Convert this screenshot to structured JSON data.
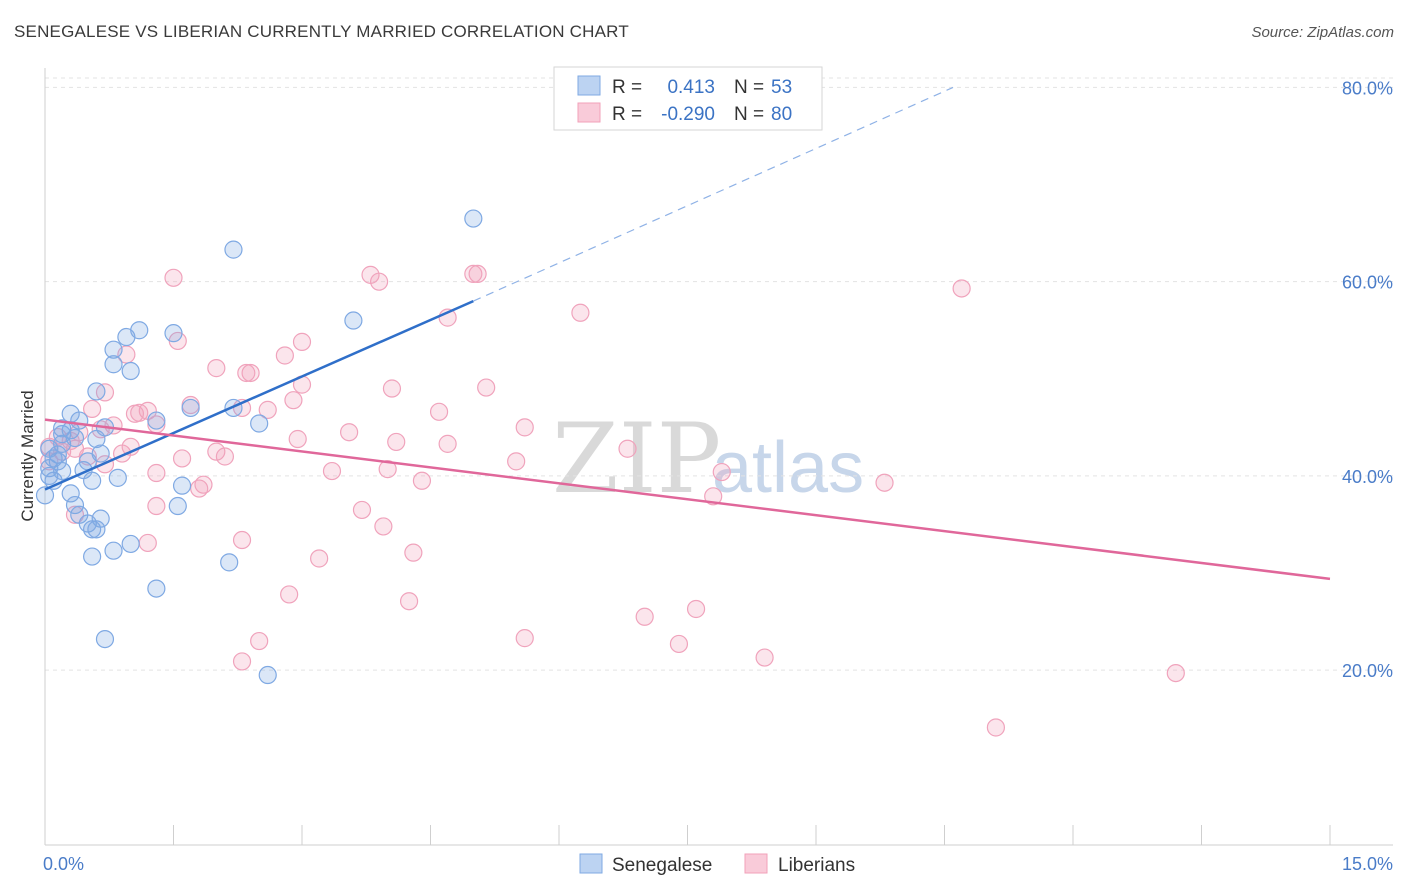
{
  "title": "SENEGALESE VS LIBERIAN CURRENTLY MARRIED CORRELATION CHART",
  "source": "Source: ZipAtlas.com",
  "watermark": {
    "zip": "ZIP",
    "atlas": "atlas"
  },
  "legend": {
    "r_label": "R =",
    "n_label": "N =",
    "entries": [
      {
        "r": "0.413",
        "n": "53",
        "color": "#7fa9e3"
      },
      {
        "r": "-0.290",
        "n": "80",
        "color": "#f2a0b9"
      }
    ]
  },
  "bottom_legend": [
    "Senegalese",
    "Liberians"
  ],
  "chart_data": {
    "type": "scatter",
    "xlabel": "",
    "ylabel": "Currently Married",
    "xlim": [
      0,
      15
    ],
    "ylim": [
      2,
      82
    ],
    "x_tick_labels": [
      "0.0%",
      "15.0%"
    ],
    "y_ticks": [
      20,
      40,
      60,
      80
    ],
    "y_tick_labels": [
      "20.0%",
      "40.0%",
      "60.0%",
      "80.0%"
    ],
    "grid": true,
    "colors": {
      "senegalese": "#7fa9e3",
      "liberians": "#f2a0b9",
      "senegalese_line": "#2f6fc9",
      "liberians_line": "#e0679a"
    },
    "series": [
      {
        "name": "Senegalese",
        "trend": {
          "x": [
            0,
            5
          ],
          "y": [
            38.6,
            58.0
          ],
          "dashed_extension": {
            "x": [
              5,
              10.6
            ],
            "y": [
              58.0,
              80.0
            ]
          }
        },
        "points": [
          [
            5.0,
            66.5
          ],
          [
            2.2,
            63.3
          ],
          [
            3.6,
            56.0
          ],
          [
            1.1,
            55.0
          ],
          [
            1.5,
            54.7
          ],
          [
            0.95,
            54.3
          ],
          [
            0.8,
            53.0
          ],
          [
            0.8,
            51.5
          ],
          [
            1.0,
            50.8
          ],
          [
            0.6,
            48.7
          ],
          [
            1.7,
            47.0
          ],
          [
            2.2,
            47.0
          ],
          [
            0.3,
            46.4
          ],
          [
            1.3,
            45.7
          ],
          [
            0.4,
            45.7
          ],
          [
            2.5,
            45.4
          ],
          [
            0.7,
            45.0
          ],
          [
            0.3,
            44.7
          ],
          [
            0.2,
            44.3
          ],
          [
            0.6,
            43.8
          ],
          [
            0.2,
            43.3
          ],
          [
            0.05,
            42.8
          ],
          [
            0.15,
            42.2
          ],
          [
            0.65,
            42.3
          ],
          [
            0.1,
            41.8
          ],
          [
            0.05,
            40.8
          ],
          [
            0.2,
            40.5
          ],
          [
            0.5,
            41.5
          ],
          [
            0.45,
            40.6
          ],
          [
            0.1,
            39.5
          ],
          [
            0.55,
            39.5
          ],
          [
            0.85,
            39.8
          ],
          [
            1.6,
            39.0
          ],
          [
            0.3,
            38.2
          ],
          [
            0.0,
            38.0
          ],
          [
            0.35,
            37.0
          ],
          [
            1.55,
            36.9
          ],
          [
            0.4,
            36.0
          ],
          [
            0.65,
            35.6
          ],
          [
            0.5,
            35.1
          ],
          [
            0.55,
            34.5
          ],
          [
            0.6,
            34.5
          ],
          [
            1.0,
            33.0
          ],
          [
            0.8,
            32.3
          ],
          [
            0.55,
            31.7
          ],
          [
            2.15,
            31.1
          ],
          [
            1.3,
            28.4
          ],
          [
            0.7,
            23.2
          ],
          [
            2.6,
            19.5
          ],
          [
            0.2,
            44.9
          ],
          [
            0.05,
            40.0
          ],
          [
            0.35,
            43.9
          ],
          [
            0.15,
            41.5
          ]
        ]
      },
      {
        "name": "Liberians",
        "trend": {
          "x": [
            0,
            15
          ],
          "y": [
            45.8,
            29.4
          ]
        },
        "points": [
          [
            5.05,
            60.8
          ],
          [
            3.8,
            60.7
          ],
          [
            5.0,
            60.8
          ],
          [
            1.5,
            60.4
          ],
          [
            3.9,
            60.0
          ],
          [
            10.7,
            59.3
          ],
          [
            6.25,
            56.8
          ],
          [
            4.7,
            56.3
          ],
          [
            3.0,
            53.8
          ],
          [
            1.55,
            53.9
          ],
          [
            0.95,
            52.5
          ],
          [
            2.8,
            52.4
          ],
          [
            2.0,
            51.1
          ],
          [
            2.4,
            50.6
          ],
          [
            2.35,
            50.6
          ],
          [
            3.0,
            49.4
          ],
          [
            4.05,
            49.0
          ],
          [
            5.15,
            49.1
          ],
          [
            0.7,
            48.6
          ],
          [
            1.7,
            47.3
          ],
          [
            2.3,
            47.0
          ],
          [
            2.6,
            46.8
          ],
          [
            4.6,
            46.6
          ],
          [
            1.2,
            46.7
          ],
          [
            0.55,
            46.9
          ],
          [
            1.05,
            46.4
          ],
          [
            1.3,
            45.3
          ],
          [
            5.6,
            45.0
          ],
          [
            0.4,
            44.5
          ],
          [
            0.65,
            44.8
          ],
          [
            2.95,
            43.8
          ],
          [
            0.3,
            43.6
          ],
          [
            4.7,
            43.3
          ],
          [
            1.0,
            43.0
          ],
          [
            0.35,
            42.8
          ],
          [
            0.2,
            42.5
          ],
          [
            0.5,
            42.0
          ],
          [
            0.9,
            42.3
          ],
          [
            2.0,
            42.5
          ],
          [
            2.1,
            42.0
          ],
          [
            1.6,
            41.8
          ],
          [
            0.05,
            41.5
          ],
          [
            5.5,
            41.5
          ],
          [
            0.7,
            41.2
          ],
          [
            3.35,
            40.5
          ],
          [
            4.0,
            40.7
          ],
          [
            1.3,
            40.3
          ],
          [
            7.9,
            40.4
          ],
          [
            4.4,
            39.5
          ],
          [
            1.85,
            39.1
          ],
          [
            9.8,
            39.3
          ],
          [
            1.8,
            38.7
          ],
          [
            7.8,
            37.9
          ],
          [
            1.3,
            36.9
          ],
          [
            3.7,
            36.5
          ],
          [
            0.35,
            36.0
          ],
          [
            3.95,
            34.8
          ],
          [
            2.3,
            33.4
          ],
          [
            1.2,
            33.1
          ],
          [
            4.3,
            32.1
          ],
          [
            3.2,
            31.5
          ],
          [
            2.85,
            27.8
          ],
          [
            4.25,
            27.1
          ],
          [
            7.6,
            26.3
          ],
          [
            7.0,
            25.5
          ],
          [
            5.6,
            23.3
          ],
          [
            2.5,
            23.0
          ],
          [
            7.4,
            22.7
          ],
          [
            8.4,
            21.3
          ],
          [
            2.3,
            20.9
          ],
          [
            13.2,
            19.7
          ],
          [
            11.1,
            14.1
          ],
          [
            0.05,
            43.0
          ],
          [
            0.15,
            44.0
          ],
          [
            1.1,
            46.5
          ],
          [
            2.9,
            47.8
          ],
          [
            0.8,
            45.2
          ],
          [
            4.1,
            43.5
          ],
          [
            6.8,
            42.8
          ],
          [
            3.55,
            44.5
          ]
        ]
      }
    ]
  }
}
